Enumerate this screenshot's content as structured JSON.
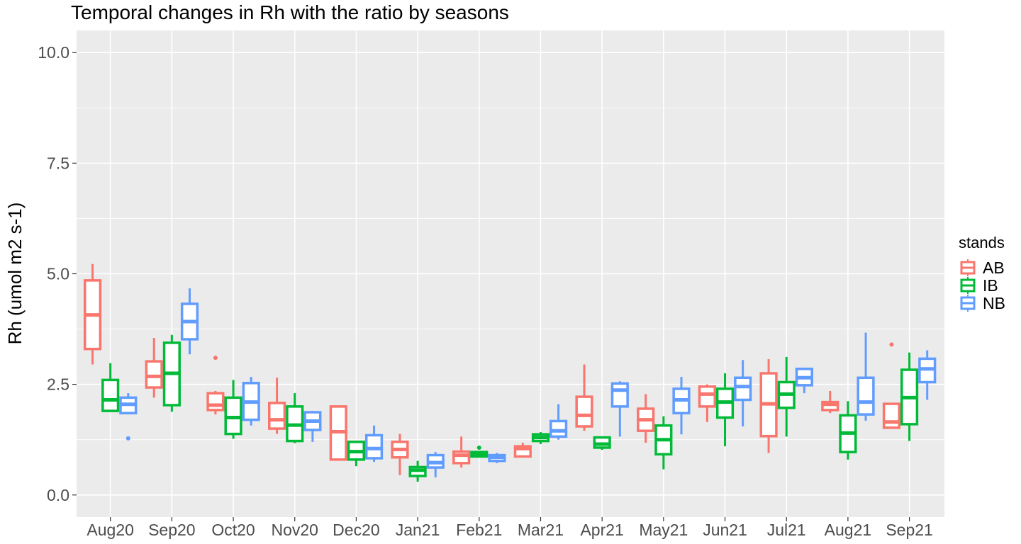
{
  "chart_data": {
    "type": "boxplot",
    "title": "Temporal changes in Rh with the ratio by seasons",
    "xlabel": "",
    "ylabel": "Rh (umol m2 s-1)",
    "ylim": [
      -0.5,
      10.5
    ],
    "yticks": [
      0.0,
      2.5,
      5.0,
      7.5,
      10.0
    ],
    "ytick_labels": [
      "0.0",
      "2.5",
      "5.0",
      "7.5",
      "10.0"
    ],
    "grid": true,
    "legend": {
      "title": "stands",
      "position": "right"
    },
    "categories": [
      "Aug20",
      "Sep20",
      "Oct20",
      "Nov20",
      "Dec20",
      "Jan21",
      "Feb21",
      "Mar21",
      "Apr21",
      "May21",
      "Jun21",
      "Jul21",
      "Aug21",
      "Sep21"
    ],
    "series": [
      {
        "name": "AB",
        "color": "#F8766D",
        "boxes": [
          {
            "min": 2.95,
            "q1": 3.3,
            "median": 4.07,
            "q3": 4.85,
            "max": 5.22,
            "outliers": []
          },
          {
            "min": 2.2,
            "q1": 2.43,
            "median": 2.68,
            "q3": 3.02,
            "max": 3.55,
            "outliers": []
          },
          {
            "min": 1.82,
            "q1": 1.92,
            "median": 2.03,
            "q3": 2.3,
            "max": 2.35,
            "outliers": [
              3.1
            ]
          },
          {
            "min": 1.38,
            "q1": 1.5,
            "median": 1.7,
            "q3": 2.08,
            "max": 2.65,
            "outliers": []
          },
          {
            "min": 0.8,
            "q1": 0.8,
            "median": 1.43,
            "q3": 2.0,
            "max": 2.0,
            "outliers": []
          },
          {
            "min": 0.45,
            "q1": 0.85,
            "median": 1.03,
            "q3": 1.2,
            "max": 1.38,
            "outliers": []
          },
          {
            "min": 0.62,
            "q1": 0.72,
            "median": 0.9,
            "q3": 0.98,
            "max": 1.32,
            "outliers": []
          },
          {
            "min": 0.87,
            "q1": 0.87,
            "median": 1.05,
            "q3": 1.1,
            "max": 1.18,
            "outliers": []
          },
          {
            "min": 1.45,
            "q1": 1.55,
            "median": 1.8,
            "q3": 2.22,
            "max": 2.95,
            "outliers": []
          },
          {
            "min": 1.18,
            "q1": 1.45,
            "median": 1.7,
            "q3": 1.95,
            "max": 2.28,
            "outliers": []
          },
          {
            "min": 1.65,
            "q1": 2.0,
            "median": 2.28,
            "q3": 2.45,
            "max": 2.5,
            "outliers": []
          },
          {
            "min": 0.95,
            "q1": 1.33,
            "median": 2.06,
            "q3": 2.75,
            "max": 3.07,
            "outliers": []
          },
          {
            "min": 1.85,
            "q1": 1.92,
            "median": 2.05,
            "q3": 2.1,
            "max": 2.35,
            "outliers": []
          },
          {
            "min": 1.5,
            "q1": 1.52,
            "median": 1.65,
            "q3": 2.06,
            "max": 2.06,
            "outliers": [
              3.4
            ]
          }
        ]
      },
      {
        "name": "IB",
        "color": "#00BA38",
        "boxes": [
          {
            "min": 1.88,
            "q1": 1.9,
            "median": 2.15,
            "q3": 2.6,
            "max": 2.98,
            "outliers": []
          },
          {
            "min": 1.88,
            "q1": 2.03,
            "median": 2.75,
            "q3": 3.44,
            "max": 3.62,
            "outliers": []
          },
          {
            "min": 1.27,
            "q1": 1.38,
            "median": 1.75,
            "q3": 2.2,
            "max": 2.6,
            "outliers": []
          },
          {
            "min": 1.17,
            "q1": 1.22,
            "median": 1.58,
            "q3": 2.0,
            "max": 2.3,
            "outliers": []
          },
          {
            "min": 0.65,
            "q1": 0.8,
            "median": 0.98,
            "q3": 1.2,
            "max": 1.22,
            "outliers": []
          },
          {
            "min": 0.3,
            "q1": 0.43,
            "median": 0.56,
            "q3": 0.63,
            "max": 0.77,
            "outliers": []
          },
          {
            "min": 0.85,
            "q1": 0.87,
            "median": 0.92,
            "q3": 0.97,
            "max": 0.97,
            "outliers": [
              1.07
            ]
          },
          {
            "min": 1.15,
            "q1": 1.22,
            "median": 1.3,
            "q3": 1.37,
            "max": 1.42,
            "outliers": []
          },
          {
            "min": 1.02,
            "q1": 1.07,
            "median": 1.15,
            "q3": 1.3,
            "max": 1.3,
            "outliers": []
          },
          {
            "min": 0.58,
            "q1": 0.92,
            "median": 1.25,
            "q3": 1.57,
            "max": 1.78,
            "outliers": []
          },
          {
            "min": 1.1,
            "q1": 1.75,
            "median": 2.1,
            "q3": 2.4,
            "max": 2.75,
            "outliers": []
          },
          {
            "min": 1.32,
            "q1": 1.97,
            "median": 2.28,
            "q3": 2.55,
            "max": 3.12,
            "outliers": []
          },
          {
            "min": 0.8,
            "q1": 0.97,
            "median": 1.4,
            "q3": 1.8,
            "max": 2.12,
            "outliers": []
          },
          {
            "min": 1.22,
            "q1": 1.6,
            "median": 2.2,
            "q3": 2.83,
            "max": 3.22,
            "outliers": []
          }
        ]
      },
      {
        "name": "NB",
        "color": "#619CFF",
        "boxes": [
          {
            "min": 1.83,
            "q1": 1.85,
            "median": 2.05,
            "q3": 2.2,
            "max": 2.3,
            "outliers": [
              1.28
            ]
          },
          {
            "min": 3.18,
            "q1": 3.52,
            "median": 3.92,
            "q3": 4.32,
            "max": 4.67,
            "outliers": []
          },
          {
            "min": 1.57,
            "q1": 1.7,
            "median": 2.1,
            "q3": 2.53,
            "max": 2.67,
            "outliers": []
          },
          {
            "min": 1.2,
            "q1": 1.47,
            "median": 1.67,
            "q3": 1.87,
            "max": 1.9,
            "outliers": []
          },
          {
            "min": 0.75,
            "q1": 0.83,
            "median": 1.05,
            "q3": 1.35,
            "max": 1.57,
            "outliers": []
          },
          {
            "min": 0.4,
            "q1": 0.62,
            "median": 0.73,
            "q3": 0.9,
            "max": 0.97,
            "outliers": []
          },
          {
            "min": 0.72,
            "q1": 0.77,
            "median": 0.85,
            "q3": 0.9,
            "max": 0.95,
            "outliers": []
          },
          {
            "min": 1.25,
            "q1": 1.32,
            "median": 1.45,
            "q3": 1.67,
            "max": 2.05,
            "outliers": []
          },
          {
            "min": 1.32,
            "q1": 2.0,
            "median": 2.37,
            "q3": 2.52,
            "max": 2.57,
            "outliers": []
          },
          {
            "min": 1.37,
            "q1": 1.85,
            "median": 2.15,
            "q3": 2.4,
            "max": 2.67,
            "outliers": []
          },
          {
            "min": 1.55,
            "q1": 2.15,
            "median": 2.45,
            "q3": 2.65,
            "max": 3.05,
            "outliers": []
          },
          {
            "min": 2.3,
            "q1": 2.48,
            "median": 2.65,
            "q3": 2.85,
            "max": 2.87,
            "outliers": []
          },
          {
            "min": 1.68,
            "q1": 1.82,
            "median": 2.1,
            "q3": 2.65,
            "max": 3.67,
            "outliers": []
          },
          {
            "min": 2.15,
            "q1": 2.55,
            "median": 2.85,
            "q3": 3.08,
            "max": 3.27,
            "outliers": []
          }
        ]
      }
    ]
  }
}
